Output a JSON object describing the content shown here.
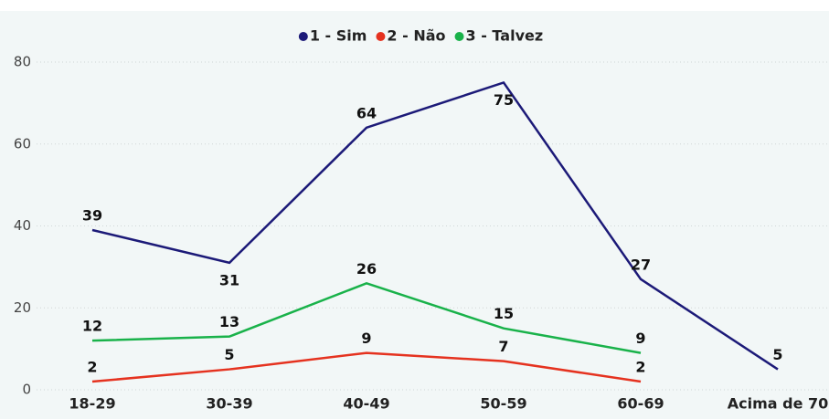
{
  "chart_data": {
    "type": "line",
    "categories": [
      "18-29",
      "30-39",
      "40-49",
      "50-59",
      "60-69",
      "Acima de 70"
    ],
    "series": [
      {
        "name": "1 - Sim",
        "color": "#1c1a78",
        "values": [
          39,
          31,
          64,
          75,
          27,
          5
        ]
      },
      {
        "name": "2 - Não",
        "color": "#e5321f",
        "values": [
          2,
          5,
          9,
          7,
          2,
          null
        ]
      },
      {
        "name": "3 - Talvez",
        "color": "#19b24a",
        "values": [
          12,
          13,
          26,
          15,
          9,
          null
        ]
      }
    ],
    "ylim": [
      0,
      80
    ],
    "yticks": [
      0,
      20,
      40,
      60,
      80
    ],
    "grid": true,
    "legend": "top"
  }
}
